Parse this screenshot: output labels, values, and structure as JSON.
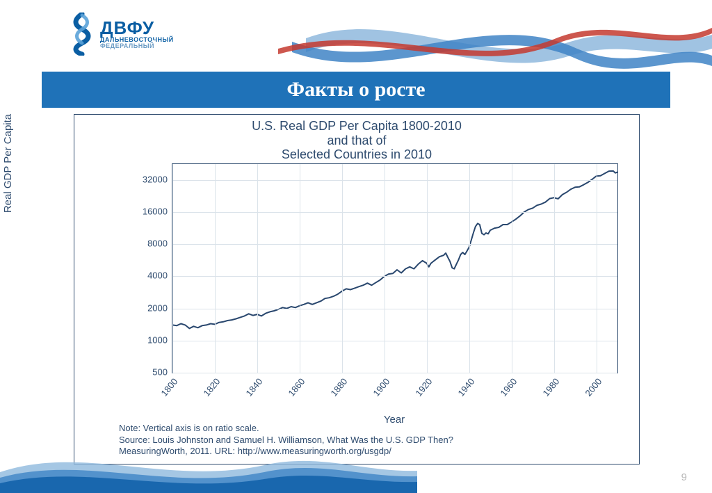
{
  "brand": {
    "name": "ДВФУ",
    "sub1": "ДАЛЬНЕВОСТОЧНЫЙ",
    "sub2": "ФЕДЕРАЛЬНЫЙ",
    "logo_color": "#0a5ea3",
    "logo_accent": "#5aa2d8"
  },
  "header_waves": {
    "colors": [
      "#c43a2f",
      "#3f84c6",
      "#8fb9dd",
      "#1f5fa1"
    ]
  },
  "footer_waves": {
    "colors": [
      "#0f5fa8",
      "#3f84c6",
      "#8fb9dd"
    ]
  },
  "title_bar": {
    "text": "Факты о росте",
    "bg": "#1f72b8",
    "fg": "#ffffff",
    "fontsize": 30
  },
  "chart": {
    "type": "line",
    "title_lines": [
      "U.S. Real GDP Per Capita 1800-2010",
      "and that of",
      "Selected Countries in 2010"
    ],
    "title_fontsize": 18,
    "title_color": "#2e4b6e",
    "xlabel": "Year",
    "ylabel": "Real GDP Per Capita",
    "label_fontsize": 15,
    "label_color": "#2e4b6e",
    "x": {
      "min": 1800,
      "max": 2010,
      "ticks": [
        1800,
        1820,
        1840,
        1860,
        1880,
        1900,
        1920,
        1940,
        1960,
        1980,
        2000
      ],
      "tick_rotation_deg": -50
    },
    "y": {
      "scale": "log",
      "min": 500,
      "max": 45000,
      "ticks": [
        500,
        1000,
        2000,
        4000,
        8000,
        16000,
        32000
      ]
    },
    "grid_color": "#dbe3ea",
    "border_color": "#2e4b6e",
    "background_color": "#ffffff",
    "series": {
      "name": "US Real GDP per capita",
      "color": "#29476e",
      "width": 2,
      "points": [
        [
          1800,
          1400
        ],
        [
          1802,
          1380
        ],
        [
          1804,
          1440
        ],
        [
          1806,
          1400
        ],
        [
          1808,
          1300
        ],
        [
          1810,
          1360
        ],
        [
          1812,
          1320
        ],
        [
          1814,
          1380
        ],
        [
          1816,
          1400
        ],
        [
          1818,
          1440
        ],
        [
          1820,
          1420
        ],
        [
          1822,
          1480
        ],
        [
          1824,
          1500
        ],
        [
          1826,
          1540
        ],
        [
          1828,
          1560
        ],
        [
          1830,
          1600
        ],
        [
          1832,
          1650
        ],
        [
          1834,
          1700
        ],
        [
          1836,
          1780
        ],
        [
          1838,
          1720
        ],
        [
          1840,
          1760
        ],
        [
          1842,
          1700
        ],
        [
          1844,
          1800
        ],
        [
          1846,
          1860
        ],
        [
          1848,
          1900
        ],
        [
          1850,
          1960
        ],
        [
          1852,
          2040
        ],
        [
          1854,
          2000
        ],
        [
          1856,
          2080
        ],
        [
          1858,
          2040
        ],
        [
          1860,
          2120
        ],
        [
          1862,
          2180
        ],
        [
          1864,
          2260
        ],
        [
          1866,
          2180
        ],
        [
          1868,
          2260
        ],
        [
          1870,
          2340
        ],
        [
          1872,
          2480
        ],
        [
          1874,
          2520
        ],
        [
          1876,
          2600
        ],
        [
          1878,
          2720
        ],
        [
          1880,
          2900
        ],
        [
          1882,
          3050
        ],
        [
          1884,
          3000
        ],
        [
          1886,
          3100
        ],
        [
          1888,
          3200
        ],
        [
          1890,
          3300
        ],
        [
          1892,
          3450
        ],
        [
          1894,
          3300
        ],
        [
          1896,
          3500
        ],
        [
          1898,
          3700
        ],
        [
          1900,
          4000
        ],
        [
          1902,
          4200
        ],
        [
          1904,
          4250
        ],
        [
          1906,
          4600
        ],
        [
          1908,
          4300
        ],
        [
          1910,
          4700
        ],
        [
          1912,
          4900
        ],
        [
          1914,
          4700
        ],
        [
          1916,
          5200
        ],
        [
          1918,
          5600
        ],
        [
          1920,
          5300
        ],
        [
          1921,
          4900
        ],
        [
          1922,
          5300
        ],
        [
          1924,
          5700
        ],
        [
          1926,
          6100
        ],
        [
          1928,
          6300
        ],
        [
          1929,
          6600
        ],
        [
          1930,
          6000
        ],
        [
          1931,
          5500
        ],
        [
          1932,
          4800
        ],
        [
          1933,
          4700
        ],
        [
          1934,
          5200
        ],
        [
          1935,
          5700
        ],
        [
          1936,
          6400
        ],
        [
          1937,
          6700
        ],
        [
          1938,
          6400
        ],
        [
          1939,
          6900
        ],
        [
          1940,
          7500
        ],
        [
          1941,
          8700
        ],
        [
          1942,
          10200
        ],
        [
          1943,
          11700
        ],
        [
          1944,
          12500
        ],
        [
          1945,
          12200
        ],
        [
          1946,
          10100
        ],
        [
          1947,
          9800
        ],
        [
          1948,
          10200
        ],
        [
          1949,
          10000
        ],
        [
          1950,
          10800
        ],
        [
          1952,
          11300
        ],
        [
          1954,
          11500
        ],
        [
          1956,
          12200
        ],
        [
          1958,
          12200
        ],
        [
          1960,
          12900
        ],
        [
          1962,
          13700
        ],
        [
          1964,
          14700
        ],
        [
          1966,
          16000
        ],
        [
          1968,
          16900
        ],
        [
          1970,
          17400
        ],
        [
          1972,
          18500
        ],
        [
          1974,
          19000
        ],
        [
          1976,
          19800
        ],
        [
          1978,
          21400
        ],
        [
          1980,
          21800
        ],
        [
          1982,
          21300
        ],
        [
          1984,
          23300
        ],
        [
          1986,
          24500
        ],
        [
          1988,
          26200
        ],
        [
          1990,
          27300
        ],
        [
          1992,
          27500
        ],
        [
          1994,
          28800
        ],
        [
          1996,
          30300
        ],
        [
          1998,
          32300
        ],
        [
          2000,
          34700
        ],
        [
          2002,
          35000
        ],
        [
          2004,
          36800
        ],
        [
          2006,
          38700
        ],
        [
          2008,
          38800
        ],
        [
          2009,
          37200
        ],
        [
          2010,
          37800
        ]
      ]
    },
    "note_lines": [
      "Note: Vertical axis is on ratio scale.",
      "Source: Louis Johnston and Samuel H. Williamson, What Was the U.S. GDP Then?",
      "MeasuringWorth, 2011. URL: http://www.measuringworth.org/usgdp/"
    ],
    "note_fontsize": 13,
    "note_color": "#2e4b6e"
  },
  "page_number": "9"
}
